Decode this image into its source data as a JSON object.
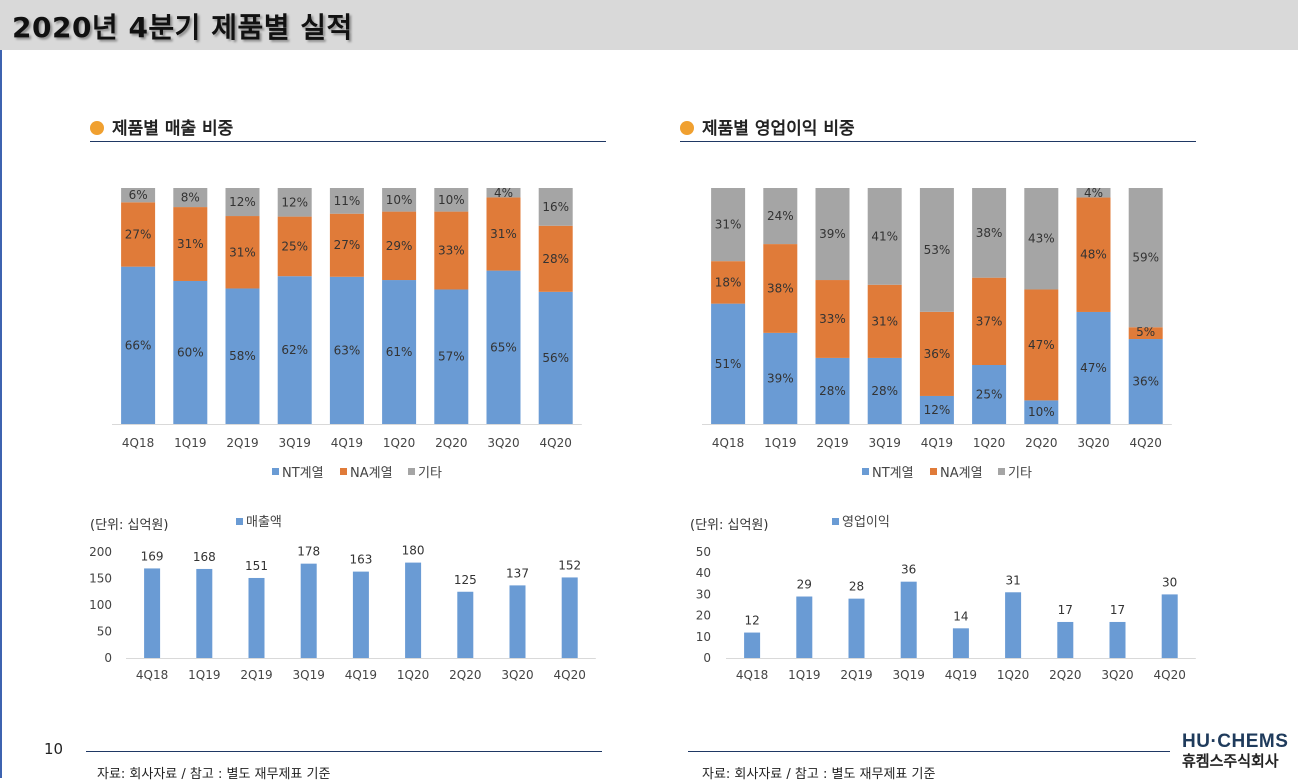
{
  "header": {
    "title": "2020년 4분기 제품별 실적"
  },
  "sections": {
    "sales_share_title": "제품별 매출 비중",
    "op_share_title": "제품별 영업이익 비중"
  },
  "units": {
    "sales": "(단위: 십억원)",
    "op": "(단위: 십억원)"
  },
  "footer": {
    "page_number": "10",
    "source_left": "자료: 회사자료 / 참고 : 별도 재무제표 기준",
    "source_right": "자료: 회사자료 / 참고 : 별도 재무제표 기준",
    "logo_en": "HU·CHEMS",
    "logo_ko": "휴켐스주식회사"
  },
  "colors": {
    "nt": "#6a9bd4",
    "na": "#e07b39",
    "other": "#a5a5a5",
    "bar": "#6a9bd4",
    "accent": "#f0a030"
  },
  "chart_data": [
    {
      "id": "sales_share",
      "type": "bar",
      "stacked": true,
      "title": "제품별 매출 비중",
      "categories": [
        "4Q18",
        "1Q19",
        "2Q19",
        "3Q19",
        "4Q19",
        "1Q20",
        "2Q20",
        "3Q20",
        "4Q20"
      ],
      "series": [
        {
          "name": "NT계열",
          "values": [
            66,
            60,
            58,
            62,
            63,
            61,
            57,
            65,
            56
          ]
        },
        {
          "name": "NA계열",
          "values": [
            27,
            31,
            31,
            25,
            27,
            29,
            33,
            31,
            28
          ]
        },
        {
          "name": "기타",
          "values": [
            6,
            8,
            12,
            12,
            11,
            10,
            10,
            4,
            16
          ]
        }
      ],
      "legend": "bottom"
    },
    {
      "id": "op_share",
      "type": "bar",
      "stacked": true,
      "title": "제품별 영업이익 비중",
      "categories": [
        "4Q18",
        "1Q19",
        "2Q19",
        "3Q19",
        "4Q19",
        "1Q20",
        "2Q20",
        "3Q20",
        "4Q20"
      ],
      "series": [
        {
          "name": "NT계열",
          "values": [
            51,
            39,
            28,
            28,
            12,
            25,
            10,
            47,
            36
          ]
        },
        {
          "name": "NA계열",
          "values": [
            18,
            38,
            33,
            31,
            36,
            37,
            47,
            48,
            5
          ]
        },
        {
          "name": "기타",
          "values": [
            31,
            24,
            39,
            41,
            53,
            38,
            43,
            4,
            59
          ]
        }
      ],
      "legend": "bottom"
    },
    {
      "id": "sales",
      "type": "bar",
      "categories": [
        "4Q18",
        "1Q19",
        "2Q19",
        "3Q19",
        "4Q19",
        "1Q20",
        "2Q20",
        "3Q20",
        "4Q20"
      ],
      "series": [
        {
          "name": "매출액",
          "values": [
            169,
            168,
            151,
            178,
            163,
            180,
            125,
            137,
            152
          ]
        }
      ],
      "yticks": [
        0,
        50,
        100,
        150,
        200
      ],
      "ylim": [
        0,
        200
      ]
    },
    {
      "id": "op_income",
      "type": "bar",
      "categories": [
        "4Q18",
        "1Q19",
        "2Q19",
        "3Q19",
        "4Q19",
        "1Q20",
        "2Q20",
        "3Q20",
        "4Q20"
      ],
      "series": [
        {
          "name": "영업이익",
          "values": [
            12,
            29,
            28,
            36,
            14,
            31,
            17,
            17,
            30
          ]
        }
      ],
      "yticks": [
        0,
        10,
        20,
        30,
        40,
        50
      ],
      "ylim": [
        0,
        50
      ]
    }
  ]
}
